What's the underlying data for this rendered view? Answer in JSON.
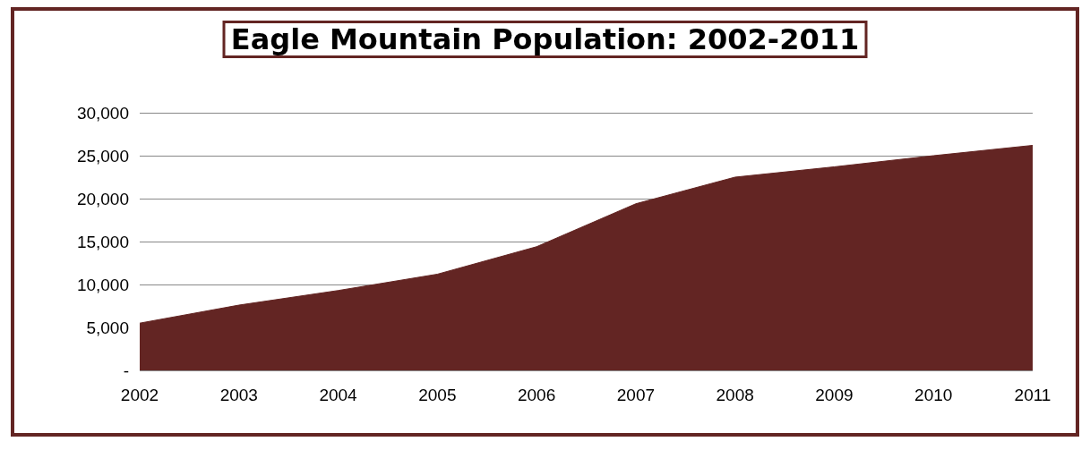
{
  "chart_data": {
    "type": "area",
    "title": "Eagle Mountain Population: 2002-2011",
    "categories": [
      "2002",
      "2003",
      "2004",
      "2005",
      "2006",
      "2007",
      "2008",
      "2009",
      "2010",
      "2011"
    ],
    "series": [
      {
        "color": "#632523",
        "values": [
          5500,
          7600,
          9300,
          11200,
          14400,
          19400,
          22500,
          23700,
          25000,
          26200
        ]
      }
    ],
    "ylim": [
      0,
      30000
    ],
    "yticks": [
      {
        "value": 0,
        "label": "-"
      },
      {
        "value": 5000,
        "label": "5,000"
      },
      {
        "value": 10000,
        "label": "10,000"
      },
      {
        "value": 15000,
        "label": "15,000"
      },
      {
        "value": 20000,
        "label": "20,000"
      },
      {
        "value": 25000,
        "label": "25,000"
      },
      {
        "value": 30000,
        "label": "30,000"
      }
    ],
    "grid": "y"
  }
}
